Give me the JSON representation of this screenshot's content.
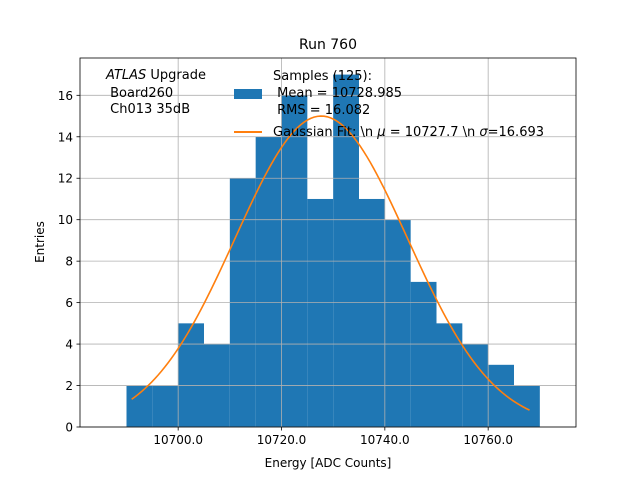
{
  "chart_data": {
    "type": "bar",
    "title": "Run 760",
    "xlabel": "Energy [ADC Counts]",
    "ylabel": "Entries",
    "xlim": [
      10681,
      10777
    ],
    "ylim": [
      0,
      17.8
    ],
    "grid": true,
    "xticks": [
      10700,
      10720,
      10740,
      10760
    ],
    "xtick_labels": [
      "10700.0",
      "10720.0",
      "10740.0",
      "10760.0"
    ],
    "yticks": [
      0,
      2,
      4,
      6,
      8,
      10,
      12,
      14,
      16
    ],
    "ytick_labels": [
      "0",
      "2",
      "4",
      "6",
      "8",
      "10",
      "12",
      "14",
      "16"
    ],
    "bin_edges": [
      10690,
      10695,
      10700,
      10705,
      10710,
      10715,
      10720,
      10725,
      10730,
      10735,
      10740,
      10745,
      10750,
      10755,
      10760,
      10765,
      10770
    ],
    "counts": [
      2,
      2,
      5,
      4,
      12,
      14,
      16,
      11,
      17,
      11,
      10,
      7,
      5,
      4,
      3,
      2
    ],
    "bar_color": "#1f77b4",
    "fit_color": "#ff7f0e",
    "fit": {
      "mu": 10727.7,
      "sigma": 16.693,
      "amplitude": 15.0,
      "x_range": [
        10691,
        10768
      ]
    },
    "legend": {
      "placement": "top-center",
      "bar_label_lines": [
        "Samples (125):",
        " Mean = 10728.985",
        " RMS = 16.082"
      ],
      "fit_label_prefix": "Gaussian Fit: \\n ",
      "fit_label_mu": "μ",
      "fit_label_mid": " = 10727.7 \\n ",
      "fit_label_sigma": "σ",
      "fit_label_end": "=16.693"
    },
    "annotation": {
      "atlas": "ATLAS",
      "upgrade": " Upgrade",
      "line2": " Board260",
      "line3": " Ch013 35dB"
    }
  }
}
